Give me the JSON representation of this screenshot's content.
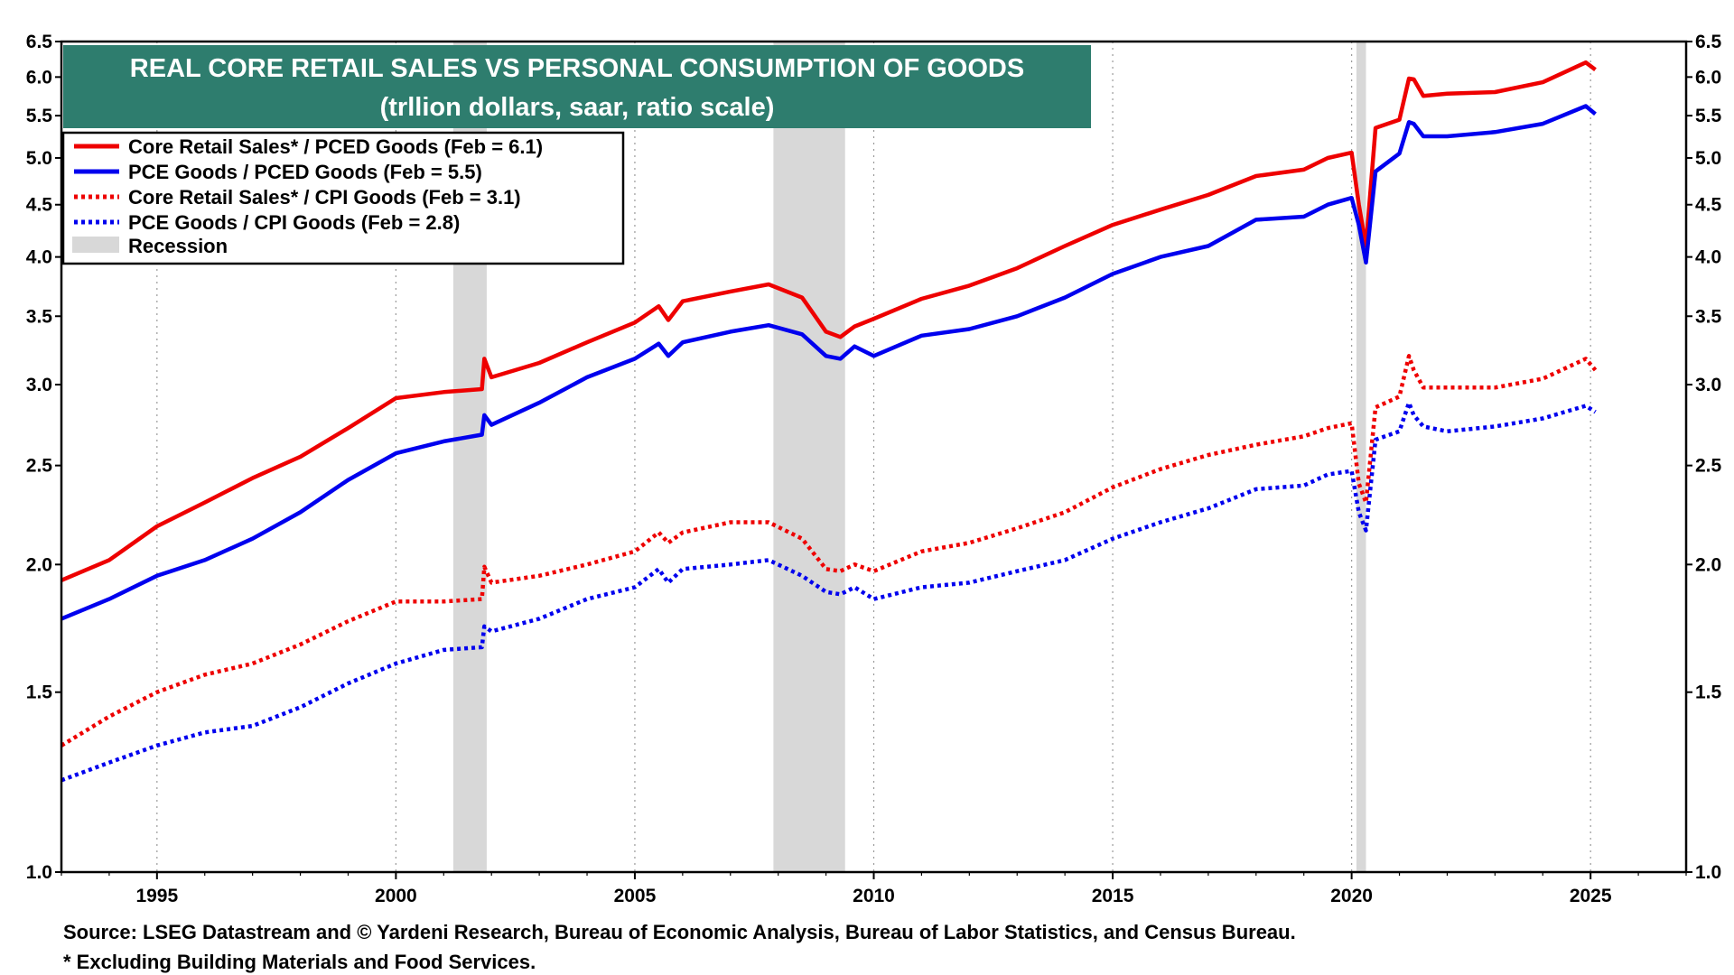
{
  "chart_data": {
    "type": "line",
    "title": "REAL CORE RETAIL SALES VS PERSONAL CONSUMPTION OF GOODS",
    "subtitle": "(trllion dollars, saar, ratio scale)",
    "xlim": [
      1993.0,
      2027.0
    ],
    "ylim": [
      1.0,
      6.5
    ],
    "y_scale": "log",
    "y_ticks": [
      "1.0",
      "1.5",
      "2.0",
      "2.5",
      "3.0",
      "3.5",
      "4.0",
      "4.5",
      "5.0",
      "5.5",
      "6.0",
      "6.5"
    ],
    "x_ticks": [
      "1995",
      "2000",
      "2005",
      "2010",
      "2015",
      "2020",
      "2025"
    ],
    "grid": "vertical dotted at x ticks",
    "legend_position": "top-left",
    "recessions": [
      [
        2001.2,
        2001.9
      ],
      [
        2007.9,
        2009.4
      ],
      [
        2020.1,
        2020.3
      ]
    ],
    "recession_label": "Recession",
    "series": [
      {
        "name": "Core Retail Sales* / PCED Goods (Feb = 6.1)",
        "style": "solid",
        "color": "#ee0000",
        "x": [
          1993.0,
          1994.0,
          1995.0,
          1996.0,
          1997.0,
          1998.0,
          1999.0,
          2000.0,
          2001.0,
          2001.8,
          2001.85,
          2002.0,
          2003.0,
          2004.0,
          2005.0,
          2005.5,
          2005.7,
          2006.0,
          2007.0,
          2007.8,
          2008.5,
          2009.0,
          2009.3,
          2009.6,
          2010.0,
          2011.0,
          2012.0,
          2013.0,
          2014.0,
          2015.0,
          2016.0,
          2017.0,
          2018.0,
          2019.0,
          2019.5,
          2020.0,
          2020.15,
          2020.3,
          2020.5,
          2021.0,
          2021.2,
          2021.3,
          2021.5,
          2022.0,
          2023.0,
          2024.0,
          2024.9,
          2025.1
        ],
        "y": [
          1.93,
          2.02,
          2.18,
          2.3,
          2.43,
          2.55,
          2.72,
          2.91,
          2.95,
          2.97,
          3.18,
          3.05,
          3.15,
          3.3,
          3.45,
          3.58,
          3.47,
          3.62,
          3.7,
          3.76,
          3.65,
          3.38,
          3.34,
          3.42,
          3.48,
          3.64,
          3.75,
          3.9,
          4.1,
          4.3,
          4.45,
          4.6,
          4.8,
          4.87,
          5.0,
          5.06,
          4.5,
          4.1,
          5.35,
          5.45,
          5.98,
          5.97,
          5.75,
          5.78,
          5.8,
          5.93,
          6.2,
          6.1
        ]
      },
      {
        "name": "PCE Goods / PCED Goods (Feb = 5.5)",
        "style": "solid",
        "color": "#0000ee",
        "x": [
          1993.0,
          1994.0,
          1995.0,
          1996.0,
          1997.0,
          1998.0,
          1999.0,
          2000.0,
          2001.0,
          2001.8,
          2001.85,
          2002.0,
          2003.0,
          2004.0,
          2005.0,
          2005.5,
          2005.7,
          2006.0,
          2007.0,
          2007.8,
          2008.5,
          2009.0,
          2009.3,
          2009.6,
          2010.0,
          2011.0,
          2012.0,
          2013.0,
          2014.0,
          2015.0,
          2016.0,
          2017.0,
          2018.0,
          2019.0,
          2019.5,
          2020.0,
          2020.15,
          2020.3,
          2020.5,
          2021.0,
          2021.2,
          2021.3,
          2021.5,
          2022.0,
          2023.0,
          2024.0,
          2024.9,
          2025.1
        ],
        "y": [
          1.77,
          1.85,
          1.95,
          2.02,
          2.12,
          2.25,
          2.42,
          2.57,
          2.64,
          2.68,
          2.8,
          2.74,
          2.88,
          3.05,
          3.18,
          3.29,
          3.2,
          3.3,
          3.38,
          3.43,
          3.36,
          3.2,
          3.18,
          3.27,
          3.2,
          3.35,
          3.4,
          3.5,
          3.65,
          3.85,
          4.0,
          4.1,
          4.35,
          4.38,
          4.5,
          4.57,
          4.3,
          3.95,
          4.85,
          5.05,
          5.42,
          5.4,
          5.25,
          5.25,
          5.3,
          5.4,
          5.62,
          5.52
        ]
      },
      {
        "name": "Core Retail Sales* / CPI Goods (Feb = 3.1)",
        "style": "dotted",
        "color": "#ee0000",
        "x": [
          1993.0,
          1994.0,
          1995.0,
          1996.0,
          1997.0,
          1998.0,
          1999.0,
          2000.0,
          2001.0,
          2001.8,
          2001.85,
          2002.0,
          2003.0,
          2004.0,
          2005.0,
          2005.5,
          2005.7,
          2006.0,
          2007.0,
          2007.8,
          2008.5,
          2009.0,
          2009.3,
          2009.6,
          2010.0,
          2011.0,
          2012.0,
          2013.0,
          2014.0,
          2015.0,
          2016.0,
          2017.0,
          2018.0,
          2019.0,
          2019.5,
          2020.0,
          2020.15,
          2020.3,
          2020.5,
          2021.0,
          2021.2,
          2021.3,
          2021.5,
          2022.0,
          2023.0,
          2024.0,
          2024.9,
          2025.1
        ],
        "y": [
          1.33,
          1.42,
          1.5,
          1.56,
          1.6,
          1.67,
          1.76,
          1.84,
          1.84,
          1.85,
          1.99,
          1.92,
          1.95,
          2.0,
          2.06,
          2.15,
          2.1,
          2.15,
          2.2,
          2.2,
          2.12,
          1.98,
          1.97,
          2.0,
          1.97,
          2.06,
          2.1,
          2.17,
          2.25,
          2.38,
          2.48,
          2.56,
          2.62,
          2.67,
          2.72,
          2.75,
          2.4,
          2.3,
          2.85,
          2.92,
          3.2,
          3.1,
          2.98,
          2.98,
          2.98,
          3.04,
          3.18,
          3.1
        ]
      },
      {
        "name": "PCE Goods / CPI Goods (Feb = 2.8)",
        "style": "dotted",
        "color": "#0000ee",
        "x": [
          1993.0,
          1994.0,
          1995.0,
          1996.0,
          1997.0,
          1998.0,
          1999.0,
          2000.0,
          2001.0,
          2001.8,
          2001.85,
          2002.0,
          2003.0,
          2004.0,
          2005.0,
          2005.5,
          2005.7,
          2006.0,
          2007.0,
          2007.8,
          2008.5,
          2009.0,
          2009.3,
          2009.6,
          2010.0,
          2011.0,
          2012.0,
          2013.0,
          2014.0,
          2015.0,
          2016.0,
          2017.0,
          2018.0,
          2019.0,
          2019.5,
          2020.0,
          2020.15,
          2020.3,
          2020.5,
          2021.0,
          2021.2,
          2021.3,
          2021.5,
          2022.0,
          2023.0,
          2024.0,
          2024.9,
          2025.1
        ],
        "y": [
          1.23,
          1.28,
          1.33,
          1.37,
          1.39,
          1.45,
          1.53,
          1.6,
          1.65,
          1.66,
          1.74,
          1.72,
          1.77,
          1.85,
          1.9,
          1.98,
          1.92,
          1.98,
          2.0,
          2.02,
          1.95,
          1.88,
          1.87,
          1.9,
          1.85,
          1.9,
          1.92,
          1.97,
          2.02,
          2.12,
          2.2,
          2.27,
          2.37,
          2.39,
          2.45,
          2.47,
          2.25,
          2.16,
          2.65,
          2.7,
          2.88,
          2.8,
          2.73,
          2.7,
          2.73,
          2.78,
          2.86,
          2.82
        ]
      }
    ]
  },
  "footnotes": {
    "source": "Source: LSEG Datastream and © Yardeni Research, Bureau of Economic Analysis, Bureau of Labor Statistics, and Census Bureau.",
    "note": "* Excluding Building Materials and Food Services."
  },
  "colors": {
    "title_bg": "#2e7d6e",
    "recession": "#d8d8d8",
    "red": "#ee0000",
    "blue": "#0000ee"
  }
}
